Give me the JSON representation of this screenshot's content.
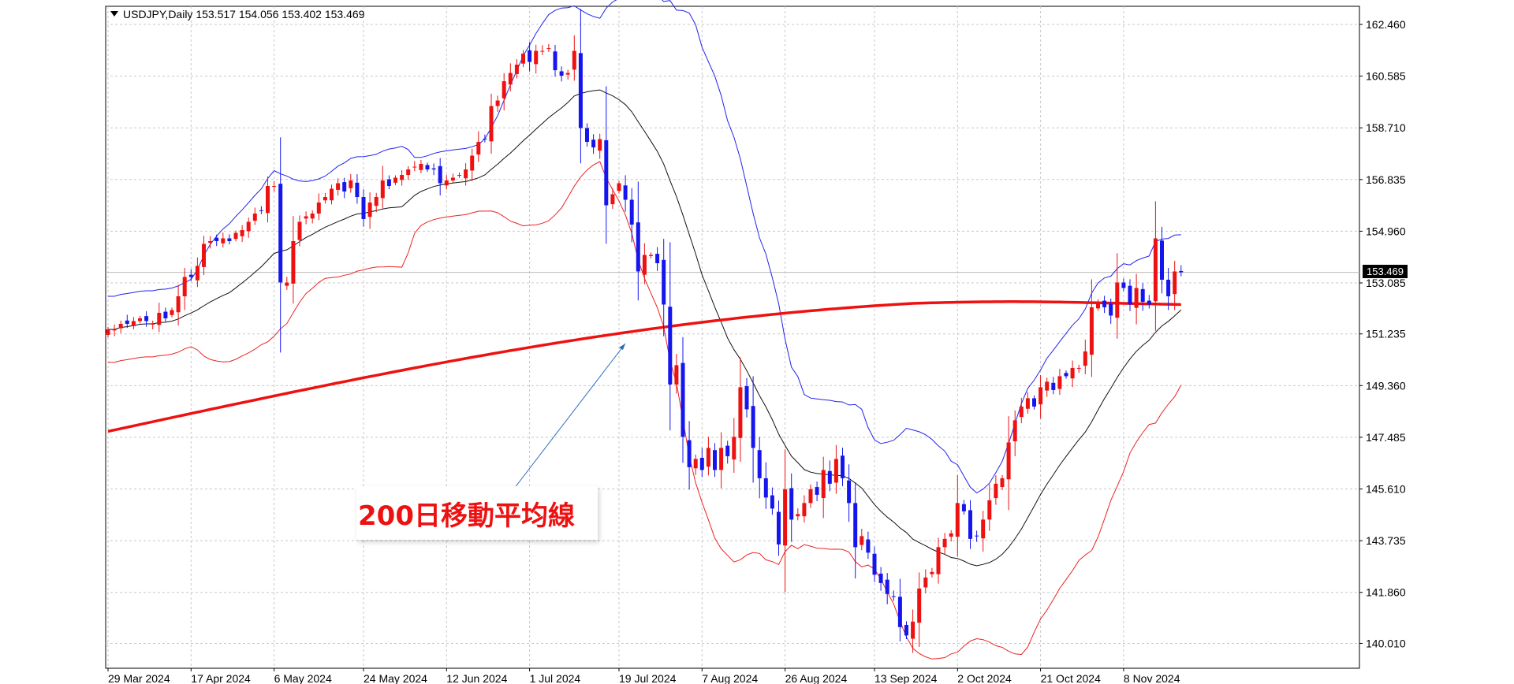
{
  "header": {
    "symbol_text": "USDJPY,Daily  153.517 154.056 153.402 153.469"
  },
  "annotation": {
    "text": "200日移動平均線"
  },
  "colors": {
    "bull": "#ee1111",
    "bear": "#1515ee",
    "ma200": "#ee1111",
    "bb_upper": "#2222ee",
    "bb_lower": "#ee2222",
    "bb_mid": "#111111",
    "grid": "#c8c8c8"
  },
  "chart_data": {
    "type": "candlestick",
    "symbol": "USDJPY",
    "timeframe": "Daily",
    "last_ohlc": {
      "open": 153.517,
      "high": 154.056,
      "low": 153.402,
      "close": 153.469
    },
    "current_price_label": "153.469",
    "ylim": [
      139.5,
      162.9
    ],
    "y_ticks": [
      "162.460",
      "160.585",
      "158.710",
      "156.835",
      "154.960",
      "153.085",
      "151.235",
      "149.360",
      "147.485",
      "145.610",
      "143.735",
      "141.860",
      "140.010"
    ],
    "x_ticks": [
      {
        "label": "29 Mar 2024",
        "index": 0
      },
      {
        "label": "17 Apr 2024",
        "index": 13
      },
      {
        "label": "6 May 2024",
        "index": 26
      },
      {
        "label": "24 May 2024",
        "index": 40
      },
      {
        "label": "12 Jun 2024",
        "index": 53
      },
      {
        "label": "1 Jul 2024",
        "index": 66
      },
      {
        "label": "19 Jul 2024",
        "index": 80
      },
      {
        "label": "7 Aug 2024",
        "index": 93
      },
      {
        "label": "26 Aug 2024",
        "index": 106
      },
      {
        "label": "13 Sep 2024",
        "index": 120
      },
      {
        "label": "2 Oct 2024",
        "index": 133
      },
      {
        "label": "21 Oct 2024",
        "index": 146
      },
      {
        "label": "8 Nov 2024",
        "index": 159
      }
    ],
    "bars": 161,
    "close": [
      151.4,
      151.4,
      151.6,
      151.6,
      151.7,
      151.8,
      151.7,
      151.6,
      152.0,
      151.8,
      152.1,
      152.6,
      153.3,
      153.3,
      153.7,
      154.5,
      154.6,
      154.6,
      154.7,
      154.6,
      154.9,
      155.0,
      155.3,
      155.6,
      155.7,
      156.6,
      156.6,
      153.1,
      153.1,
      154.6,
      155.3,
      155.5,
      155.6,
      156.0,
      156.2,
      156.5,
      156.7,
      156.4,
      156.8,
      156.2,
      155.4,
      156.0,
      156.2,
      156.8,
      156.6,
      156.9,
      157.0,
      157.2,
      157.3,
      157.4,
      157.2,
      157.2,
      156.7,
      156.8,
      156.9,
      157.0,
      157.2,
      157.7,
      158.2,
      158.3,
      159.5,
      159.7,
      160.4,
      160.7,
      161.0,
      161.4,
      161.1,
      161.5,
      161.5,
      161.6,
      160.8,
      160.6,
      160.7,
      161.5,
      158.7,
      158.2,
      158.0,
      158.3,
      155.9,
      156.3,
      156.7,
      156.1,
      155.2,
      153.5,
      154.1,
      154.1,
      153.8,
      152.3,
      149.4,
      150.1,
      147.5,
      146.4,
      146.7,
      146.3,
      147.1,
      146.3,
      147.1,
      146.8,
      147.5,
      149.3,
      148.5,
      147.1,
      146.0,
      145.3,
      144.9,
      143.6,
      145.6,
      144.5,
      144.7,
      145.1,
      145.6,
      145.4,
      146.3,
      145.8,
      146.7,
      146.0,
      145.1,
      143.5,
      143.9,
      143.3,
      142.5,
      142.2,
      141.8,
      141.7,
      140.6,
      140.3,
      140.8,
      142.0,
      142.4,
      142.6,
      143.5,
      143.8,
      144.0,
      145.1,
      144.8,
      143.8,
      143.9,
      144.5,
      145.2,
      145.8,
      146.0,
      147.3,
      148.1,
      148.6,
      148.9,
      148.6,
      149.3,
      149.5,
      149.2,
      149.7,
      149.7,
      150.0,
      150.0,
      150.6,
      152.2,
      152.4,
      152.2,
      151.9,
      153.1,
      152.9,
      152.3,
      152.9,
      152.4,
      152.3,
      154.7,
      153.2,
      152.6,
      153.5,
      153.469
    ]
  }
}
